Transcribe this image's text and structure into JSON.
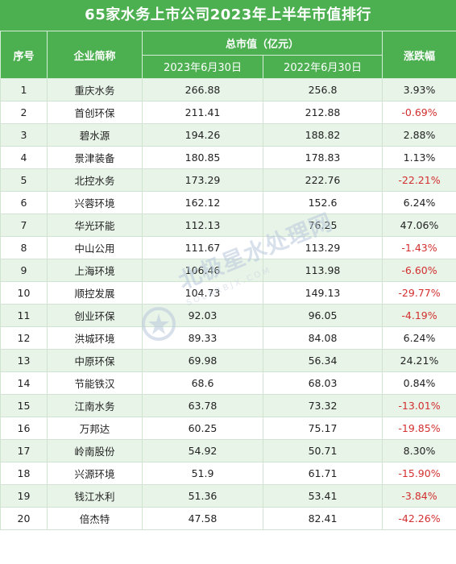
{
  "title": "65家水务上市公司2023年上半年市值排行",
  "headers": {
    "rank": "序号",
    "company": "企业简称",
    "market_cap": "总市值（亿元）",
    "date_2023": "2023年6月30日",
    "date_2022": "2022年6月30日",
    "change": "涨跌幅"
  },
  "rows": [
    {
      "rank": "1",
      "company": "重庆水务",
      "v2023": "266.88",
      "v2022": "256.8",
      "change": "3.93%"
    },
    {
      "rank": "2",
      "company": "首创环保",
      "v2023": "211.41",
      "v2022": "212.88",
      "change": "-0.69%"
    },
    {
      "rank": "3",
      "company": "碧水源",
      "v2023": "194.26",
      "v2022": "188.82",
      "change": "2.88%"
    },
    {
      "rank": "4",
      "company": "景津装备",
      "v2023": "180.85",
      "v2022": "178.83",
      "change": "1.13%"
    },
    {
      "rank": "5",
      "company": "北控水务",
      "v2023": "173.29",
      "v2022": "222.76",
      "change": "-22.21%"
    },
    {
      "rank": "6",
      "company": "兴蓉环境",
      "v2023": "162.12",
      "v2022": "152.6",
      "change": "6.24%"
    },
    {
      "rank": "7",
      "company": "华光环能",
      "v2023": "112.13",
      "v2022": "76.25",
      "change": "47.06%"
    },
    {
      "rank": "8",
      "company": "中山公用",
      "v2023": "111.67",
      "v2022": "113.29",
      "change": "-1.43%"
    },
    {
      "rank": "9",
      "company": "上海环境",
      "v2023": "106.46",
      "v2022": "113.98",
      "change": "-6.60%"
    },
    {
      "rank": "10",
      "company": "顺控发展",
      "v2023": "104.73",
      "v2022": "149.13",
      "change": "-29.77%"
    },
    {
      "rank": "11",
      "company": "创业环保",
      "v2023": "92.03",
      "v2022": "96.05",
      "change": "-4.19%"
    },
    {
      "rank": "12",
      "company": "洪城环境",
      "v2023": "89.33",
      "v2022": "84.08",
      "change": "6.24%"
    },
    {
      "rank": "13",
      "company": "中原环保",
      "v2023": "69.98",
      "v2022": "56.34",
      "change": "24.21%"
    },
    {
      "rank": "14",
      "company": "节能铁汉",
      "v2023": "68.6",
      "v2022": "68.03",
      "change": "0.84%"
    },
    {
      "rank": "15",
      "company": "江南水务",
      "v2023": "63.78",
      "v2022": "73.32",
      "change": "-13.01%"
    },
    {
      "rank": "16",
      "company": "万邦达",
      "v2023": "60.25",
      "v2022": "75.17",
      "change": "-19.85%"
    },
    {
      "rank": "17",
      "company": "岭南股份",
      "v2023": "54.92",
      "v2022": "50.71",
      "change": "8.30%"
    },
    {
      "rank": "18",
      "company": "兴源环境",
      "v2023": "51.9",
      "v2022": "61.71",
      "change": "-15.90%"
    },
    {
      "rank": "19",
      "company": "钱江水利",
      "v2023": "51.36",
      "v2022": "53.41",
      "change": "-3.84%"
    },
    {
      "rank": "20",
      "company": "倍杰特",
      "v2023": "47.58",
      "v2022": "82.41",
      "change": "-42.26%"
    }
  ],
  "colors": {
    "header_bg": "#4caf50",
    "stripe": "#e8f4e8",
    "negative": "#d32f2f"
  },
  "watermark": {
    "text": "北极星水处理网",
    "sub": "SOLARBJX.COM"
  }
}
